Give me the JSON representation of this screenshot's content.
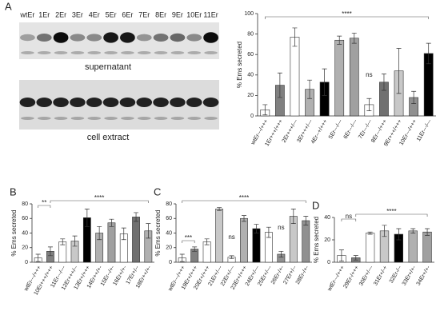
{
  "blot": {
    "panel": "A",
    "lanes": [
      "wtEr",
      "1Er",
      "2Er",
      "3Er",
      "4Er",
      "5Er",
      "6Er",
      "7Er",
      "8Er",
      "9Er",
      "10Er",
      "11Er"
    ],
    "captions": [
      "supernatant",
      "cell extract"
    ]
  },
  "chart_data": [
    {
      "type": "bar",
      "y_label": "% Ems secreted",
      "categories": [
        "wtEr---/+++",
        "1Er+++/+++",
        "2Er+++/---",
        "3Er+++/---",
        "4Er--+/+++",
        "5Er---/---",
        "6Er---/---",
        "7Er---/---",
        "8Er---/+++",
        "9Er+++/+++",
        "10Er---/+++",
        "11Er---/---"
      ],
      "values": [
        6,
        30,
        77,
        26,
        33,
        74,
        76,
        11,
        33,
        44,
        18,
        61
      ],
      "errors": [
        5,
        12,
        9,
        9,
        13,
        4,
        5,
        6,
        8,
        22,
        6,
        10
      ],
      "colors": [
        "#ffffff",
        "#808080",
        "#ffffff",
        "#b0b0b0",
        "#000000",
        "#b0b0b0",
        "#a0a0a0",
        "#ffffff",
        "#707070",
        "#c8c8c8",
        "#909090",
        "#000000"
      ],
      "ylim": [
        0,
        100
      ],
      "yticks": [
        0,
        20,
        40,
        60,
        80,
        100
      ],
      "annotations": [
        "****",
        "ns"
      ]
    },
    {
      "type": "bar",
      "panel": "B",
      "y_label": "% Ems secreted",
      "categories": [
        "wtEr---/+++",
        "10Er+++/+++",
        "11Er---/---",
        "12Er+++/--",
        "13Er+/+++",
        "14Er++/+-",
        "15Er--/+-",
        "16Er+/+-",
        "17Er+/--",
        "18Er++/+-"
      ],
      "values": [
        6,
        15,
        28,
        29,
        61,
        40,
        54,
        39,
        62,
        43
      ],
      "errors": [
        5,
        6,
        4,
        7,
        12,
        9,
        5,
        8,
        6,
        10
      ],
      "colors": [
        "#ffffff",
        "#808080",
        "#ffffff",
        "#c8c8c8",
        "#000000",
        "#b0b0b0",
        "#a0a0a0",
        "#ffffff",
        "#707070",
        "#b0b0b0"
      ],
      "ylim": [
        0,
        80
      ],
      "yticks": [
        0,
        20,
        40,
        60,
        80
      ],
      "annotations": [
        "**",
        "****"
      ]
    },
    {
      "type": "bar",
      "panel": "C",
      "y_label": "% Ems secreted",
      "categories": [
        "wtEr---/+++",
        "19Er+/+++",
        "20Er+/+++",
        "21Er+/---",
        "22Er+/---",
        "23Er+/+++",
        "24Er+/---",
        "25Er+/---",
        "26Er-/+-",
        "27Er+/--",
        "28Er-/+-"
      ],
      "values": [
        6,
        18,
        28,
        73,
        7,
        60,
        46,
        41,
        11,
        63,
        57
      ],
      "errors": [
        5,
        3,
        4,
        2,
        2,
        4,
        6,
        7,
        4,
        10,
        6
      ],
      "colors": [
        "#ffffff",
        "#808080",
        "#ffffff",
        "#c8c8c8",
        "#ffffff",
        "#b0b0b0",
        "#000000",
        "#ffffff",
        "#909090",
        "#c8c8c8",
        "#909090"
      ],
      "ylim": [
        0,
        80
      ],
      "yticks": [
        0,
        20,
        40,
        60,
        80
      ],
      "annotations": [
        "***",
        "ns",
        "ns",
        "****"
      ]
    },
    {
      "type": "bar",
      "panel": "D",
      "y_label": "% Ems secreted",
      "categories": [
        "wtEr---/+++",
        "29Er-/+++",
        "30Er+/---",
        "31Er+/-+",
        "32Er-/--",
        "33Er+/+-",
        "34Er+/+-"
      ],
      "values": [
        6,
        4,
        26,
        28,
        25,
        28,
        27
      ],
      "errors": [
        5,
        2,
        1,
        5,
        5,
        2,
        3
      ],
      "colors": [
        "#ffffff",
        "#808080",
        "#ffffff",
        "#c8c8c8",
        "#000000",
        "#b0b0b0",
        "#a0a0a0"
      ],
      "ylim": [
        0,
        40
      ],
      "yticks": [
        0,
        20,
        40
      ],
      "annotations": [
        "ns",
        "****"
      ]
    }
  ]
}
